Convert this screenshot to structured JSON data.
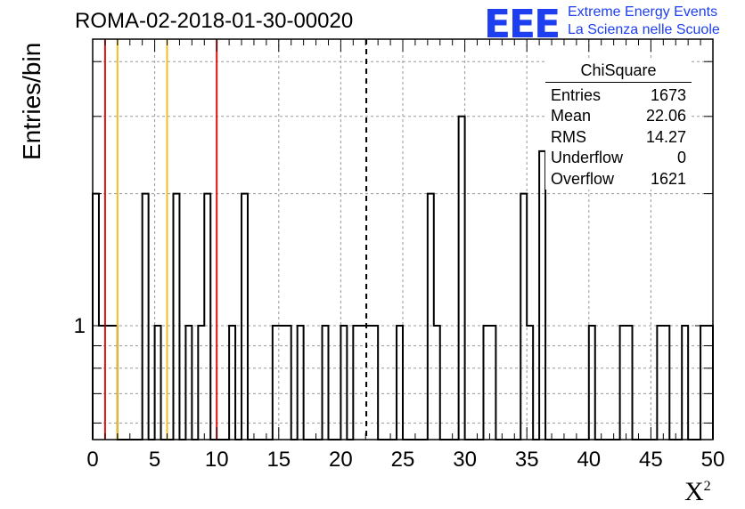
{
  "title": "ROMA-02-2018-01-30-00020",
  "logo": {
    "mark": "EEE",
    "line1": "Extreme Energy Events",
    "line2": "La Scienza nelle Scuole",
    "color": "#1e3ff0"
  },
  "stats": {
    "name": "ChiSquare",
    "rows": [
      {
        "label": "Entries",
        "value": "1673"
      },
      {
        "label": "Mean",
        "value": "22.06"
      },
      {
        "label": "RMS",
        "value": "14.27"
      },
      {
        "label": "Underflow",
        "value": "0"
      },
      {
        "label": "Overflow",
        "value": "1621"
      }
    ]
  },
  "chart_data": {
    "type": "histogram",
    "xlabel": "X",
    "xlabel_sup": "2",
    "ylabel": "Entries/bin",
    "xlim": [
      0,
      50
    ],
    "ylim": [
      0.55,
      4.5
    ],
    "log_y": true,
    "grid": true,
    "bin_width": 0.5,
    "x_ticks": [
      0,
      5,
      10,
      15,
      20,
      25,
      30,
      35,
      40,
      45,
      50
    ],
    "y_tick_labels": [
      {
        "value": 1,
        "label": "1"
      }
    ],
    "bins": [
      {
        "x": 0.0,
        "y": 2
      },
      {
        "x": 0.5,
        "y": 1
      },
      {
        "x": 1.0,
        "y": 1
      },
      {
        "x": 1.5,
        "y": 1
      },
      {
        "x": 4.0,
        "y": 2
      },
      {
        "x": 5.0,
        "y": 1
      },
      {
        "x": 6.5,
        "y": 2
      },
      {
        "x": 7.5,
        "y": 1
      },
      {
        "x": 8.5,
        "y": 1
      },
      {
        "x": 9.0,
        "y": 2
      },
      {
        "x": 11.0,
        "y": 1
      },
      {
        "x": 12.0,
        "y": 2
      },
      {
        "x": 14.5,
        "y": 1
      },
      {
        "x": 15.0,
        "y": 1
      },
      {
        "x": 15.5,
        "y": 1
      },
      {
        "x": 16.5,
        "y": 1
      },
      {
        "x": 18.5,
        "y": 1
      },
      {
        "x": 20.0,
        "y": 1
      },
      {
        "x": 21.0,
        "y": 1
      },
      {
        "x": 21.5,
        "y": 1
      },
      {
        "x": 22.0,
        "y": 1
      },
      {
        "x": 22.5,
        "y": 1
      },
      {
        "x": 24.5,
        "y": 1
      },
      {
        "x": 27.0,
        "y": 2
      },
      {
        "x": 27.5,
        "y": 1
      },
      {
        "x": 29.5,
        "y": 3
      },
      {
        "x": 31.5,
        "y": 1
      },
      {
        "x": 32.0,
        "y": 1
      },
      {
        "x": 34.5,
        "y": 2
      },
      {
        "x": 35.0,
        "y": 1
      },
      {
        "x": 36.0,
        "y": 2.5
      },
      {
        "x": 40.0,
        "y": 1
      },
      {
        "x": 42.5,
        "y": 1
      },
      {
        "x": 43.0,
        "y": 1
      },
      {
        "x": 45.5,
        "y": 1
      },
      {
        "x": 46.0,
        "y": 1
      },
      {
        "x": 47.5,
        "y": 1
      },
      {
        "x": 49.0,
        "y": 1
      },
      {
        "x": 49.5,
        "y": 1
      }
    ],
    "vertical_lines": [
      {
        "x": 1,
        "color": "#dd1111",
        "style": "solid"
      },
      {
        "x": 2,
        "color": "#f0c020",
        "style": "solid"
      },
      {
        "x": 6,
        "color": "#f0c020",
        "style": "solid"
      },
      {
        "x": 10,
        "color": "#dd1111",
        "style": "solid"
      },
      {
        "x": 22.06,
        "color": "#000000",
        "style": "dashed"
      }
    ]
  }
}
